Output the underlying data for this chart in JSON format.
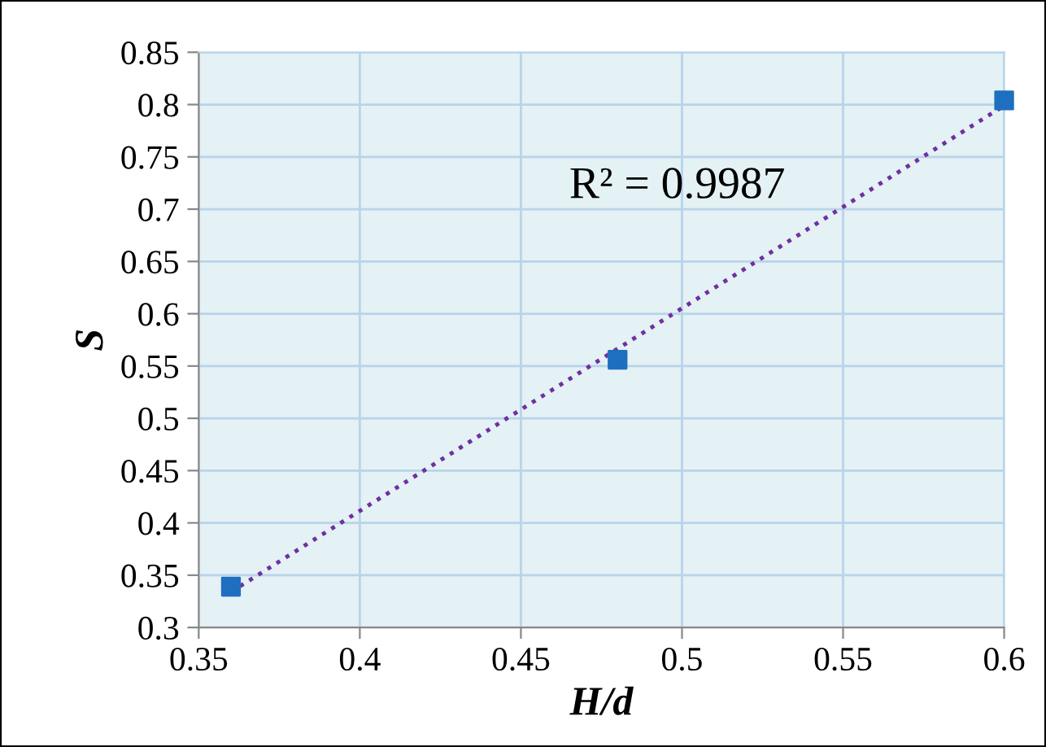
{
  "chart_data": {
    "type": "scatter",
    "xlabel": "H/d",
    "ylabel": "S",
    "series": [
      {
        "color": "#1f6fc0",
        "marker": "square",
        "x": [
          0.36,
          0.48,
          0.6
        ],
        "values": [
          0.339,
          0.556,
          0.804
        ]
      },
      {
        "type": "line",
        "color": "#7030a0",
        "line_style": "dotted",
        "marker": "none",
        "x": [
          0.36,
          0.6
        ],
        "values": [
          0.334,
          0.799
        ]
      }
    ],
    "annotations": [
      "R² = 0.9987"
    ],
    "xlim": [
      0.35,
      0.6
    ],
    "xticks": [
      0.35,
      0.4,
      0.45,
      0.5,
      0.55,
      0.6
    ],
    "ylim": [
      0.3,
      0.85
    ],
    "yticks": [
      0.3,
      0.35,
      0.4,
      0.45,
      0.5,
      0.55,
      0.6,
      0.65,
      0.7,
      0.75,
      0.8,
      0.85
    ],
    "grid": true,
    "legend": false
  }
}
